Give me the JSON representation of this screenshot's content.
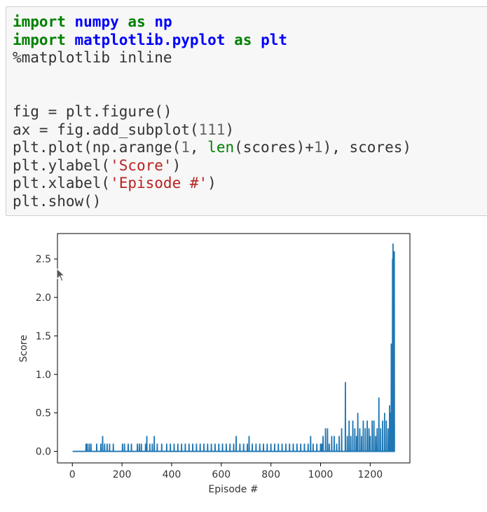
{
  "code_cell": {
    "lines": [
      [
        {
          "t": "import",
          "c": "kw"
        },
        {
          "t": " "
        },
        {
          "t": "numpy",
          "c": "mod"
        },
        {
          "t": " "
        },
        {
          "t": "as",
          "c": "kw"
        },
        {
          "t": " "
        },
        {
          "t": "np",
          "c": "mod"
        }
      ],
      [
        {
          "t": "import",
          "c": "kw"
        },
        {
          "t": " "
        },
        {
          "t": "matplotlib.pyplot",
          "c": "mod"
        },
        {
          "t": " "
        },
        {
          "t": "as",
          "c": "kw"
        },
        {
          "t": " "
        },
        {
          "t": "plt",
          "c": "mod"
        }
      ],
      [
        {
          "t": "%matplotlib inline"
        }
      ],
      [],
      [],
      [
        {
          "t": "fig = plt.figure()"
        }
      ],
      [
        {
          "t": "ax = fig.add_subplot("
        },
        {
          "t": "111",
          "c": "num"
        },
        {
          "t": ")"
        }
      ],
      [
        {
          "t": "plt.plot(np.arange("
        },
        {
          "t": "1",
          "c": "num"
        },
        {
          "t": ", "
        },
        {
          "t": "len",
          "c": "bi"
        },
        {
          "t": "(scores)+"
        },
        {
          "t": "1",
          "c": "num"
        },
        {
          "t": "), scores)"
        }
      ],
      [
        {
          "t": "plt.ylabel("
        },
        {
          "t": "'Score'",
          "c": "str"
        },
        {
          "t": ")"
        }
      ],
      [
        {
          "t": "plt.xlabel("
        },
        {
          "t": "'Episode #'",
          "c": "str"
        },
        {
          "t": ")"
        }
      ],
      [
        {
          "t": "plt.show()"
        }
      ]
    ]
  },
  "chart_data": {
    "type": "line",
    "xlabel": "Episode #",
    "ylabel": "Score",
    "xlim": [
      -60,
      1360
    ],
    "ylim": [
      -0.15,
      2.83
    ],
    "xticks": [
      0,
      200,
      400,
      600,
      800,
      1000,
      1200
    ],
    "yticks": [
      0.0,
      0.5,
      1.0,
      1.5,
      2.0,
      2.5
    ],
    "ytick_labels": [
      "0.0",
      "0.5",
      "1.0",
      "1.5",
      "2.0",
      "2.5"
    ],
    "grid": false,
    "color": "#1f77b4",
    "x_start": 1,
    "x_end": 1297,
    "baseline": 0.0,
    "spikes": [
      [
        55,
        0.1
      ],
      [
        60,
        0.1
      ],
      [
        68,
        0.1
      ],
      [
        75,
        0.1
      ],
      [
        98,
        0.1
      ],
      [
        115,
        0.1
      ],
      [
        122,
        0.2
      ],
      [
        130,
        0.1
      ],
      [
        140,
        0.1
      ],
      [
        150,
        0.1
      ],
      [
        165,
        0.1
      ],
      [
        202,
        0.1
      ],
      [
        210,
        0.1
      ],
      [
        225,
        0.1
      ],
      [
        238,
        0.1
      ],
      [
        262,
        0.1
      ],
      [
        270,
        0.1
      ],
      [
        278,
        0.1
      ],
      [
        295,
        0.1
      ],
      [
        300,
        0.2
      ],
      [
        312,
        0.1
      ],
      [
        322,
        0.1
      ],
      [
        330,
        0.2
      ],
      [
        342,
        0.1
      ],
      [
        360,
        0.1
      ],
      [
        380,
        0.1
      ],
      [
        395,
        0.1
      ],
      [
        410,
        0.1
      ],
      [
        425,
        0.1
      ],
      [
        440,
        0.1
      ],
      [
        455,
        0.1
      ],
      [
        470,
        0.1
      ],
      [
        485,
        0.1
      ],
      [
        500,
        0.1
      ],
      [
        515,
        0.1
      ],
      [
        530,
        0.1
      ],
      [
        545,
        0.1
      ],
      [
        560,
        0.1
      ],
      [
        575,
        0.1
      ],
      [
        590,
        0.1
      ],
      [
        605,
        0.1
      ],
      [
        620,
        0.1
      ],
      [
        635,
        0.1
      ],
      [
        650,
        0.1
      ],
      [
        660,
        0.2
      ],
      [
        675,
        0.1
      ],
      [
        690,
        0.1
      ],
      [
        705,
        0.1
      ],
      [
        712,
        0.2
      ],
      [
        725,
        0.1
      ],
      [
        740,
        0.1
      ],
      [
        755,
        0.1
      ],
      [
        770,
        0.1
      ],
      [
        785,
        0.1
      ],
      [
        800,
        0.1
      ],
      [
        815,
        0.1
      ],
      [
        830,
        0.1
      ],
      [
        845,
        0.1
      ],
      [
        860,
        0.1
      ],
      [
        875,
        0.1
      ],
      [
        890,
        0.1
      ],
      [
        905,
        0.1
      ],
      [
        920,
        0.1
      ],
      [
        935,
        0.1
      ],
      [
        950,
        0.1
      ],
      [
        960,
        0.2
      ],
      [
        970,
        0.1
      ],
      [
        985,
        0.1
      ],
      [
        1000,
        0.1
      ],
      [
        1005,
        0.1
      ],
      [
        1010,
        0.2
      ],
      [
        1020,
        0.3
      ],
      [
        1028,
        0.3
      ],
      [
        1035,
        0.1
      ],
      [
        1045,
        0.2
      ],
      [
        1055,
        0.2
      ],
      [
        1065,
        0.1
      ],
      [
        1075,
        0.2
      ],
      [
        1085,
        0.3
      ],
      [
        1100,
        0.9
      ],
      [
        1108,
        0.2
      ],
      [
        1115,
        0.4
      ],
      [
        1122,
        0.2
      ],
      [
        1130,
        0.4
      ],
      [
        1138,
        0.3
      ],
      [
        1145,
        0.2
      ],
      [
        1150,
        0.5
      ],
      [
        1158,
        0.3
      ],
      [
        1165,
        0.2
      ],
      [
        1172,
        0.4
      ],
      [
        1180,
        0.3
      ],
      [
        1188,
        0.4
      ],
      [
        1195,
        0.3
      ],
      [
        1200,
        0.2
      ],
      [
        1208,
        0.4
      ],
      [
        1215,
        0.4
      ],
      [
        1222,
        0.2
      ],
      [
        1228,
        0.3
      ],
      [
        1235,
        0.7
      ],
      [
        1242,
        0.3
      ],
      [
        1250,
        0.4
      ],
      [
        1258,
        0.5
      ],
      [
        1265,
        0.4
      ],
      [
        1272,
        0.3
      ],
      [
        1278,
        0.6
      ],
      [
        1283,
        0.5
      ],
      [
        1285,
        1.4
      ],
      [
        1288,
        0.7
      ],
      [
        1290,
        2.5
      ],
      [
        1292,
        2.7
      ],
      [
        1294,
        1.8
      ],
      [
        1296,
        2.6
      ],
      [
        1297,
        2.6
      ]
    ]
  }
}
